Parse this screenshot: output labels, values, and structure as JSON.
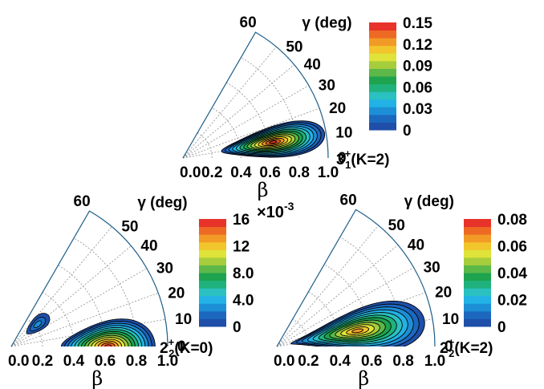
{
  "chart_data": [
    {
      "type": "heatmap",
      "subtype": "polar-beta-gamma-contour",
      "xlabel": "β",
      "ylabel": "γ (deg)",
      "state_label": "3₁⁺(K=2)",
      "state_base": "3",
      "state_sup": "+",
      "state_sub": "1",
      "state_suffix": "(K=2)",
      "beta_ticks": [
        "0.0",
        "0.2",
        "0.4",
        "0.6",
        "0.8",
        "1.0"
      ],
      "gamma_ticks": [
        "0",
        "10",
        "20",
        "30",
        "40",
        "50",
        "60"
      ],
      "beta_range": [
        0,
        1.0
      ],
      "gamma_range": [
        0,
        60
      ],
      "colorbar": {
        "min": 0,
        "max": 0.15,
        "ticks": [
          "0",
          "0.03",
          "0.06",
          "0.09",
          "0.12",
          "0.15"
        ],
        "multiplier": ""
      },
      "peaks": [
        {
          "beta": 0.62,
          "gamma": 9,
          "value": 0.15
        }
      ]
    },
    {
      "type": "heatmap",
      "subtype": "polar-beta-gamma-contour",
      "xlabel": "β",
      "ylabel": "γ (deg)",
      "state_label": "2₂⁺(K=0)",
      "state_base": "2",
      "state_sup": "+",
      "state_sub": "2",
      "state_suffix": "(K=0)",
      "beta_ticks": [
        "0.0",
        "0.2",
        "0.4",
        "0.6",
        "0.8",
        "1.0"
      ],
      "gamma_ticks": [
        "0",
        "10",
        "20",
        "30",
        "40",
        "50",
        "60"
      ],
      "beta_range": [
        0,
        1.0
      ],
      "gamma_range": [
        0,
        60
      ],
      "colorbar": {
        "min": 0,
        "max": 16,
        "ticks": [
          "0",
          "4.0",
          "8.0",
          "12",
          "16"
        ],
        "multiplier": "×10⁻³",
        "mult_base": "×10",
        "mult_exp": "-3"
      },
      "peaks": [
        {
          "beta": 0.62,
          "gamma": 0,
          "value": 16
        },
        {
          "beta": 0.22,
          "gamma": 40,
          "value": 4
        }
      ]
    },
    {
      "type": "heatmap",
      "subtype": "polar-beta-gamma-contour",
      "xlabel": "β",
      "ylabel": "γ (deg)",
      "state_label": "2₂⁺(K=2)",
      "state_base": "2",
      "state_sup": "+",
      "state_sub": "2",
      "state_suffix": "(K=2)",
      "beta_ticks": [
        "0.0",
        "0.2",
        "0.4",
        "0.6",
        "0.8",
        "1.0"
      ],
      "gamma_ticks": [
        "0",
        "10",
        "20",
        "30",
        "40",
        "50",
        "60"
      ],
      "beta_range": [
        0,
        1.0
      ],
      "gamma_range": [
        0,
        60
      ],
      "colorbar": {
        "min": 0,
        "max": 0.08,
        "ticks": [
          "0",
          "0.02",
          "0.04",
          "0.06",
          "0.08"
        ],
        "multiplier": ""
      },
      "peaks": [
        {
          "beta": 0.5,
          "gamma": 14,
          "value": 0.08
        }
      ]
    }
  ],
  "colors": {
    "scale": [
      "#1f4fa8",
      "#1c68bf",
      "#1d8fd6",
      "#22b2e6",
      "#2bc1c0",
      "#1fb27c",
      "#1ea34e",
      "#5cb848",
      "#a6cd3c",
      "#dfe33a",
      "#f2c52c",
      "#f29a26",
      "#ee6a24",
      "#e8332a"
    ],
    "contour": "#000000",
    "grid": "#9a9a9a",
    "outline": "#1f5f8a"
  }
}
